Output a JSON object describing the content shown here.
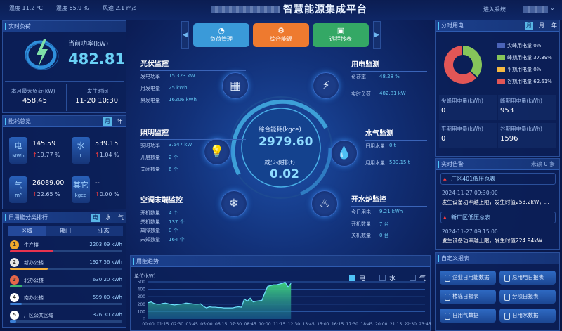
{
  "header": {
    "weather": [
      "温度 11.2 ℃",
      "湿度 65.9 %",
      "风速 2.1 m/s"
    ],
    "title": "智慧能源集成平台",
    "enter": "进入系统"
  },
  "nav": {
    "buttons": [
      {
        "label": "负荷管理",
        "icon": "gauge-icon",
        "color": "#3a9ad9"
      },
      {
        "label": "综合能源",
        "icon": "energy-icon",
        "color": "#ee7a2f"
      },
      {
        "label": "远程抄表",
        "icon": "meter-icon",
        "color": "#34a865"
      }
    ]
  },
  "realtime_load": {
    "title": "实时负荷",
    "power_label": "当前功率(kW)",
    "power": "482.81",
    "max_label": "本月最大负荷(kW)",
    "max": "458.45",
    "time_label": "发生时间",
    "time": "11-20 10:30"
  },
  "overview": {
    "title": "能耗总览",
    "toggles": [
      "月",
      "年"
    ],
    "active": "月",
    "items": [
      {
        "name": "电",
        "unit": "MWh",
        "value": "145.59",
        "change": "19.77 %"
      },
      {
        "name": "水",
        "unit": "t",
        "value": "539.15",
        "change": "1.04 %"
      },
      {
        "name": "气",
        "unit": "m³",
        "value": "26089.00",
        "change": "22.65 %"
      },
      {
        "name": "其它",
        "unit": "kgce",
        "value": "--",
        "change": "0.00 %"
      }
    ]
  },
  "ranking": {
    "title": "日用能分类排行",
    "toggles": [
      "电",
      "水",
      "气"
    ],
    "active": "电",
    "tabs": [
      "区域",
      "部门",
      "业态"
    ],
    "active_tab": "区域",
    "items": [
      {
        "rank": "1",
        "name": "生产楼",
        "value": "2203.09 kWh",
        "share": 38.7,
        "color": "#e8334f",
        "badge": "#f0a92b"
      },
      {
        "rank": "2",
        "name": "新办公楼",
        "value": "1927.56 kWh",
        "share": 33.9,
        "color": "#f5b13c",
        "badge": "#e6e6e6"
      },
      {
        "rank": "3",
        "name": "北办公楼",
        "value": "630.20 kWh",
        "share": 11.1,
        "color": "#3cb371",
        "badge": "#e5664a"
      },
      {
        "rank": "4",
        "name": "南办公楼",
        "value": "599.00 kWh",
        "share": 10.5,
        "color": "#3b7fd6",
        "badge": "#ffffff"
      },
      {
        "rank": "5",
        "name": "厂区公共区域",
        "value": "326.30 kWh",
        "share": 5.7,
        "color": "#3b7fd6",
        "badge": "#ffffff"
      }
    ]
  },
  "pv": {
    "title": "光伏监控",
    "rows": [
      [
        "发电功率",
        "15.323 kW"
      ],
      [
        "月发电量",
        "25 kWh"
      ],
      [
        "累发电量",
        "16206 kWh"
      ]
    ]
  },
  "lighting": {
    "title": "照明监控",
    "rows": [
      [
        "实时功率",
        "3.547 kW"
      ],
      [
        "开启数量",
        "2 个"
      ],
      [
        "关闭数量",
        "6 个"
      ]
    ]
  },
  "ac": {
    "title": "空调末端监控",
    "rows": [
      [
        "开机数量",
        "4 个"
      ],
      [
        "关机数量",
        "137 个"
      ],
      [
        "故障数量",
        "0 个"
      ],
      [
        "未知数量",
        "164 个"
      ]
    ]
  },
  "elec": {
    "title": "用电监测",
    "rows": [
      [
        "负荷率",
        "48.28 %"
      ],
      [
        "实时负荷",
        "482.81 kW"
      ]
    ]
  },
  "water": {
    "title": "水气监测",
    "rows": [
      [
        "日用水量",
        "0 t"
      ],
      [
        "月用水量",
        "539.15 t"
      ]
    ]
  },
  "boiler": {
    "title": "开水炉监控",
    "rows": [
      [
        "今日用电",
        "9.21 kWh"
      ],
      [
        "开机数量",
        "7 台"
      ],
      [
        "关机数量",
        "0 台"
      ]
    ]
  },
  "center": {
    "energy_label": "综合能耗(kgce)",
    "energy": "2979.60",
    "carbon_label": "减少碳排(t)",
    "carbon": "0.02"
  },
  "tou": {
    "title": "分时用电",
    "toggles": [
      "月",
      "月",
      "年"
    ],
    "legend": [
      {
        "label": "尖峰用电量",
        "pct": "0%",
        "value": 0,
        "color": "#4a63b8"
      },
      {
        "label": "峰期用电量",
        "pct": "37.39%",
        "value": 37.39,
        "color": "#86c55a"
      },
      {
        "label": "平期用电量",
        "pct": "0%",
        "value": 0,
        "color": "#f5b942"
      },
      {
        "label": "谷期用电量",
        "pct": "62.61%",
        "value": 62.61,
        "color": "#e25656"
      }
    ],
    "stats": [
      [
        "尖峰用电量(kWh)",
        "0"
      ],
      [
        "峰期用电量(kWh)",
        "953"
      ],
      [
        "平期用电量(kWh)",
        "0"
      ],
      [
        "谷期用电量(kWh)",
        "1596"
      ]
    ]
  },
  "alerts": {
    "title": "实时告警",
    "unread": "未读 0 条",
    "items": [
      {
        "name": "厂区401低压总表",
        "time": "2024-11-27 09:30:00",
        "msg": "发生设备功率越上限，发生时值253.2kW，..."
      },
      {
        "name": "新厂区低压总表",
        "time": "2024-11-27 09:15:00",
        "msg": "发生设备功率越上限，发生时值224.94kW..."
      }
    ]
  },
  "reports": {
    "title": "自定义报表",
    "buttons": [
      "企业日用能数据",
      "总用电日报表",
      "楼栋日报表",
      "分项日报表",
      "日用气数据",
      "日用水数据"
    ]
  },
  "chart_data": {
    "type": "area",
    "title": "用能趋势",
    "ylabel": "单位(kW)",
    "ylim": [
      0,
      500
    ],
    "yticks": [
      "0",
      "100",
      "200",
      "300",
      "400",
      "500"
    ],
    "xticks": [
      "00:00",
      "01:15",
      "02:30",
      "03:45",
      "05:00",
      "06:15",
      "07:30",
      "08:45",
      "10:00",
      "11:15",
      "12:30",
      "13:45",
      "15:00",
      "16:15",
      "17:30",
      "18:45",
      "20:00",
      "21:15",
      "22:30",
      "23:45"
    ],
    "legend": [
      {
        "name": "电",
        "active": true,
        "color": "#4fc3f7"
      },
      {
        "name": "水",
        "active": false
      },
      {
        "name": "气",
        "active": false
      }
    ],
    "grid": true,
    "series": [
      {
        "name": "电",
        "interval_min": 15,
        "values": [
          220,
          230,
          210,
          200,
          200,
          210,
          215,
          205,
          195,
          190,
          195,
          200,
          205,
          215,
          210,
          205,
          200,
          200,
          205,
          170,
          150,
          165,
          160,
          160,
          155,
          155,
          150,
          150,
          150,
          150,
          160,
          165,
          160,
          270,
          240,
          280,
          230,
          240,
          245,
          250,
          350,
          440,
          450,
          460,
          460,
          470,
          480,
          495,
          430,
          480
        ]
      }
    ]
  }
}
